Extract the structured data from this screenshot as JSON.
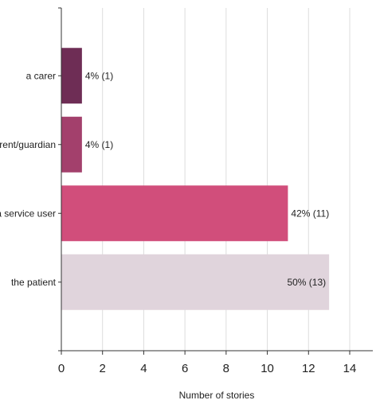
{
  "chart_data": {
    "type": "bar",
    "orientation": "horizontal",
    "title": "",
    "xlabel": "Number of stories",
    "ylabel": "",
    "xlim": [
      0,
      14
    ],
    "xticks": [
      0,
      2,
      4,
      6,
      8,
      10,
      12,
      14
    ],
    "grid": true,
    "legend": "none",
    "categories": [
      "a carer",
      "a parent/guardian",
      "a service user",
      "the patient"
    ],
    "values": [
      1,
      1,
      11,
      13
    ],
    "data_labels": [
      "4% (1)",
      "4% (1)",
      "42% (11)",
      "50% (13)"
    ],
    "colors": [
      "#6e2d55",
      "#a3406c",
      "#d14e7b",
      "#e0d4dc"
    ]
  }
}
